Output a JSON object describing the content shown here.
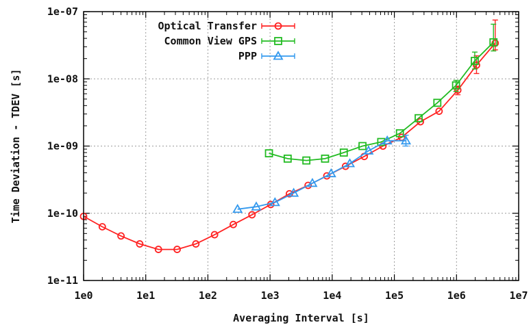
{
  "chart_data": {
    "type": "line",
    "title": "",
    "xlabel": "Averaging Interval [s]",
    "ylabel": "Time Deviation - TDEV [s]",
    "x_scale": "log",
    "y_scale": "log",
    "xlim": [
      1,
      10000000
    ],
    "ylim": [
      1e-11,
      1e-07
    ],
    "x_ticks": [
      1,
      10,
      100,
      1000,
      10000,
      100000,
      1000000,
      10000000
    ],
    "x_tick_labels": [
      "1e0",
      "1e1",
      "1e2",
      "1e3",
      "1e4",
      "1e5",
      "1e6",
      "1e7"
    ],
    "y_ticks": [
      1e-11,
      1e-10,
      1e-09,
      1e-08,
      1e-07
    ],
    "y_tick_labels": [
      "1e-11",
      "1e-10",
      "1e-09",
      "1e-08",
      "1e-07"
    ],
    "grid": true,
    "legend_position": "top-left",
    "series": [
      {
        "name": "Optical Transfer",
        "color": "#ff2222",
        "marker": "circle",
        "x": [
          1,
          2,
          4,
          8,
          16,
          32,
          64,
          128,
          256,
          512,
          1024,
          2048,
          4096,
          8192,
          16384,
          32768,
          65536,
          131072,
          262144,
          524288,
          1048576,
          2097152,
          4194304
        ],
        "y": [
          9e-11,
          6.3e-11,
          4.6e-11,
          3.5e-11,
          2.9e-11,
          2.9e-11,
          3.5e-11,
          4.8e-11,
          6.8e-11,
          9.5e-11,
          1.35e-10,
          1.95e-10,
          2.6e-10,
          3.6e-10,
          5e-10,
          7e-10,
          1e-09,
          1.35e-09,
          2.3e-09,
          3.3e-09,
          6.8e-09,
          1.6e-08,
          3.4e-08
        ],
        "error_bars": [
          {
            "x": 1048576,
            "low": 5.8e-09,
            "high": 7.8e-09
          },
          {
            "x": 2097152,
            "low": 1.2e-08,
            "high": 2.2e-08
          },
          {
            "x": 4194304,
            "low": 2.7e-08,
            "high": 7.5e-08
          }
        ]
      },
      {
        "name": "Common View GPS",
        "color": "#22bb22",
        "marker": "square",
        "x": [
          960,
          1920,
          3840,
          7680,
          15360,
          30720,
          61440,
          122880,
          245760,
          491520,
          983040,
          1966080,
          3932160
        ],
        "y": [
          7.8e-10,
          6.5e-10,
          6.1e-10,
          6.5e-10,
          8e-10,
          1e-09,
          1.15e-09,
          1.55e-09,
          2.6e-09,
          4.4e-09,
          8e-09,
          1.85e-08,
          3.5e-08
        ],
        "error_bars": [
          {
            "x": 983040,
            "low": 6.5e-09,
            "high": 9.5e-09
          },
          {
            "x": 1966080,
            "low": 1.4e-08,
            "high": 2.5e-08
          },
          {
            "x": 3932160,
            "low": 2.6e-08,
            "high": 6.5e-08
          }
        ]
      },
      {
        "name": "PPP",
        "color": "#3399ee",
        "marker": "triangle",
        "x": [
          300,
          600,
          1200,
          2400,
          4800,
          9600,
          19200,
          38400,
          76800,
          153600
        ],
        "y": [
          1.15e-10,
          1.25e-10,
          1.45e-10,
          2e-10,
          2.8e-10,
          3.9e-10,
          5.5e-10,
          8.5e-10,
          1.2e-09,
          1.2e-09
        ],
        "error_bars": [
          {
            "x": 153600,
            "low": 1e-09,
            "high": 1.45e-09
          }
        ]
      }
    ]
  }
}
